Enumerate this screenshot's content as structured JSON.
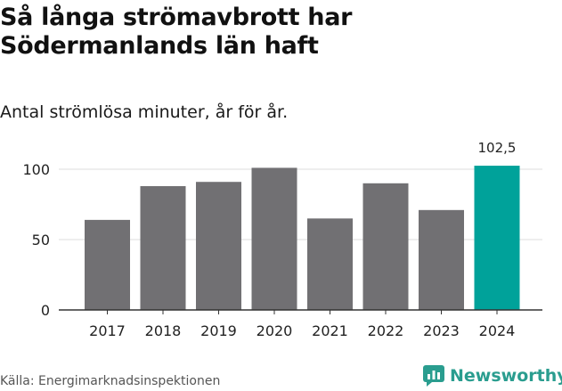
{
  "title": "Så långa strömavbrott har Södermanlands län haft",
  "subtitle": "Antal strömlösa minuter, år för år.",
  "source": "Källa: Energimarknadsinspektionen",
  "brand": {
    "name": "Newsworthy",
    "icon": "newsworthy-logo-icon",
    "color": "#2a9d8f"
  },
  "colors": {
    "bar": "#717073",
    "highlight": "#00a29a",
    "grid": "#e3e3e3",
    "axis": "#333333"
  },
  "chart_data": {
    "type": "bar",
    "title": "Så långa strömavbrott har Södermanlands län haft",
    "subtitle": "Antal strömlösa minuter, år för år.",
    "xlabel": "",
    "ylabel": "",
    "categories": [
      "2017",
      "2018",
      "2019",
      "2020",
      "2021",
      "2022",
      "2023",
      "2024"
    ],
    "values": [
      64,
      88,
      91,
      101,
      65,
      90,
      71,
      102.5
    ],
    "highlight_index": 7,
    "labels": [
      {
        "index": 7,
        "text": "102,5"
      }
    ],
    "yticks": [
      0,
      50,
      100
    ],
    "ylim": [
      0,
      110
    ],
    "grid": true
  }
}
